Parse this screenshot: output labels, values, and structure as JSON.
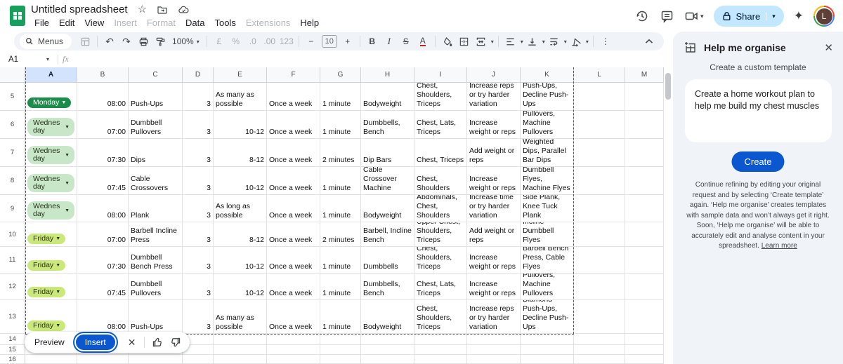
{
  "titlebar": {
    "title": "Untitled spreadsheet",
    "menus": [
      {
        "label": "File",
        "enabled": true
      },
      {
        "label": "Edit",
        "enabled": true
      },
      {
        "label": "View",
        "enabled": true
      },
      {
        "label": "Insert",
        "enabled": false
      },
      {
        "label": "Format",
        "enabled": false
      },
      {
        "label": "Data",
        "enabled": true
      },
      {
        "label": "Tools",
        "enabled": true
      },
      {
        "label": "Extensions",
        "enabled": false
      },
      {
        "label": "Help",
        "enabled": true
      }
    ],
    "share_label": "Share",
    "avatar_letter": "L"
  },
  "toolbar": {
    "menus_label": "Menus",
    "zoom_value": "100%",
    "currency_label": "£",
    "percent_label": "%",
    "dec_decrease_label": ".0",
    "dec_increase_label": ".00",
    "number_format_label": "123",
    "minus_label": "−",
    "font_size_value": "10",
    "plus_label": "+",
    "bold_label": "B",
    "italic_label": "I",
    "strikethrough_label": "S",
    "text_color_label": "A",
    "more_label": "⋮"
  },
  "formula_bar": {
    "cell_ref": "A1",
    "fx_label": "fx"
  },
  "grid": {
    "column_headers": [
      "A",
      "B",
      "C",
      "D",
      "E",
      "F",
      "G",
      "H",
      "I",
      "J",
      "K",
      "L",
      "M"
    ],
    "selected_column": "A",
    "rows": [
      {
        "n": 5,
        "day": "Monday",
        "day_style": "dark",
        "time": "08:00",
        "exercise": "Push-Ups",
        "sets": "3",
        "reps": "As many as possible",
        "frequency": "Once a week",
        "rest": "1 minute",
        "equipment": "Bodyweight",
        "muscles": "Chest, Shoulders, Triceps",
        "progression": "Increase reps or try harder variation",
        "alternatives": "Diamond Push-Ups, Decline Push-Ups"
      },
      {
        "n": 6,
        "day": "Wednesday",
        "day_style": "light",
        "time": "07:00",
        "exercise": "Dumbbell Pullovers",
        "sets": "3",
        "reps": "10-12",
        "frequency": "Once a week",
        "rest": "1 minute",
        "equipment": "Dumbbells, Bench",
        "muscles": "Chest, Lats, Triceps",
        "progression": "Increase weight or reps",
        "alternatives": "Cable Pullovers, Machine Pullovers"
      },
      {
        "n": 7,
        "day": "Wednesday",
        "day_style": "light",
        "time": "07:30",
        "exercise": "Dips",
        "sets": "3",
        "reps": "8-12",
        "frequency": "Once a week",
        "rest": "2 minutes",
        "equipment": "Dip Bars",
        "muscles": "Chest, Triceps",
        "progression": "Add weight or reps",
        "alternatives": "Weighted Dips, Parallel Bar Dips"
      },
      {
        "n": 8,
        "day": "Wednesday",
        "day_style": "light",
        "time": "07:45",
        "exercise": "Cable Crossovers",
        "sets": "3",
        "reps": "10-12",
        "frequency": "Once a week",
        "rest": "1 minute",
        "equipment": "Cable Crossover Machine",
        "muscles": "Chest, Shoulders",
        "progression": "Increase weight or reps",
        "alternatives": "Dumbbell Flyes, Machine Flyes"
      },
      {
        "n": 9,
        "day": "Wednesday",
        "day_style": "light",
        "time": "08:00",
        "exercise": "Plank",
        "sets": "3",
        "reps": "As long as possible",
        "frequency": "Once a week",
        "rest": "1 minute",
        "equipment": "Bodyweight",
        "muscles": "Abdominals, Chest, Shoulders",
        "progression": "Increase time or try harder variation",
        "alternatives": "Side Plank, Knee Tuck Plank"
      },
      {
        "n": 10,
        "day": "Friday",
        "day_style": "lime",
        "time": "07:00",
        "exercise": "Barbell Incline Press",
        "sets": "3",
        "reps": "8-12",
        "frequency": "Once a week",
        "rest": "2 minutes",
        "equipment": "Barbell, Incline Bench",
        "muscles": "Upper Chest, Shoulders, Triceps",
        "progression": "Add weight or reps",
        "alternatives": "Dumbbell Incline Press, Incline Dumbbell Flyes"
      },
      {
        "n": 11,
        "day": "Friday",
        "day_style": "lime",
        "time": "07:30",
        "exercise": "Dumbbell Bench Press",
        "sets": "3",
        "reps": "10-12",
        "frequency": "Once a week",
        "rest": "1 minute",
        "equipment": "Dumbbells",
        "muscles": "Chest, Shoulders, Triceps",
        "progression": "Increase weight or reps",
        "alternatives": "Barbell Bench Press, Cable Flyes"
      },
      {
        "n": 12,
        "day": "Friday",
        "day_style": "lime",
        "time": "07:45",
        "exercise": "Dumbbell Pullovers",
        "sets": "3",
        "reps": "10-12",
        "frequency": "Once a week",
        "rest": "1 minute",
        "equipment": "Dumbbells, Bench",
        "muscles": "Chest, Lats, Triceps",
        "progression": "Increase weight or reps",
        "alternatives": "Cable Pullovers, Machine Pullovers"
      },
      {
        "n": 13,
        "day": "Friday",
        "day_style": "lime",
        "time": "08:00",
        "exercise": "Push-Ups",
        "sets": "3",
        "reps": "As many as possible",
        "frequency": "Once a week",
        "rest": "1 minute",
        "equipment": "Bodyweight",
        "muscles": "Chest, Shoulders, Triceps",
        "progression": "Increase reps or try harder variation",
        "alternatives": "Diamond Push-Ups, Decline Push-Ups"
      },
      {
        "n": 14
      },
      {
        "n": 15
      },
      {
        "n": 16
      }
    ]
  },
  "preview_bar": {
    "preview_label": "Preview",
    "insert_label": "Insert"
  },
  "panel": {
    "title": "Help me organise",
    "subtitle": "Create a custom template",
    "prompt_text": "Create a home workout plan to help me build my chest muscles",
    "create_label": "Create",
    "disclaimer": "Continue refining by editing your original request and by selecting ‘Create template’ again. ‘Help me organise’ creates templates with sample data and won’t always get it right. Soon, ‘Help me organise’ will be able to accurately edit and analyse content in your spreadsheet. ",
    "learn_more_label": "Learn more"
  },
  "colors": {
    "accent_blue": "#0b57d0",
    "share_bg": "#c2e7ff",
    "toolbar_bg": "#f0f4f9",
    "panel_bg": "#f0f4f9",
    "selected_column_bg": "#d3e3fd",
    "chip_dark_green": "#1a8d4a",
    "chip_light_green": "#c8e7c8",
    "chip_lime": "#cbe87b"
  }
}
